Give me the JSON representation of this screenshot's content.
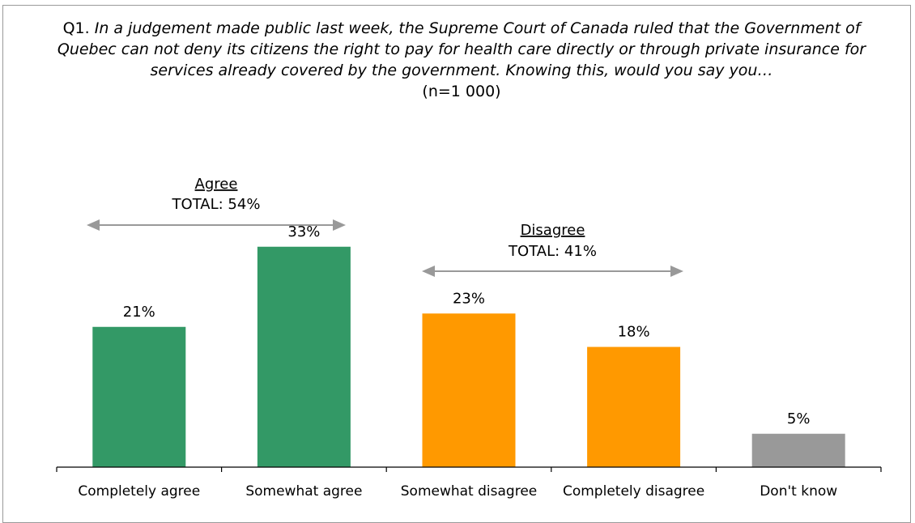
{
  "question": {
    "number": "Q1.",
    "text": "In a judgement made public last week, the Supreme Court of Canada ruled that the Government of Quebec can not deny its citizens the right to pay for health care directly or through private insurance for services already covered by the government. Knowing this, would you say you…",
    "sample": "(n=1 000)"
  },
  "chart_data": {
    "type": "bar",
    "categories": [
      "Completely agree",
      "Somewhat agree",
      "Somewhat disagree",
      "Completely disagree",
      "Don't know"
    ],
    "values": [
      21,
      33,
      23,
      18,
      5
    ],
    "value_labels": [
      "21%",
      "33%",
      "23%",
      "18%",
      "5%"
    ],
    "bar_colors": [
      "#339966",
      "#339966",
      "#ff9900",
      "#ff9900",
      "#999999"
    ],
    "ylim": [
      0,
      40
    ],
    "grid": false,
    "groups": [
      {
        "title": "Agree",
        "total": "TOTAL: 54%",
        "span": [
          0,
          1
        ]
      },
      {
        "title": "Disagree",
        "total": "TOTAL: 41%",
        "span": [
          2,
          3
        ]
      }
    ],
    "arrow_color": "#999999"
  }
}
